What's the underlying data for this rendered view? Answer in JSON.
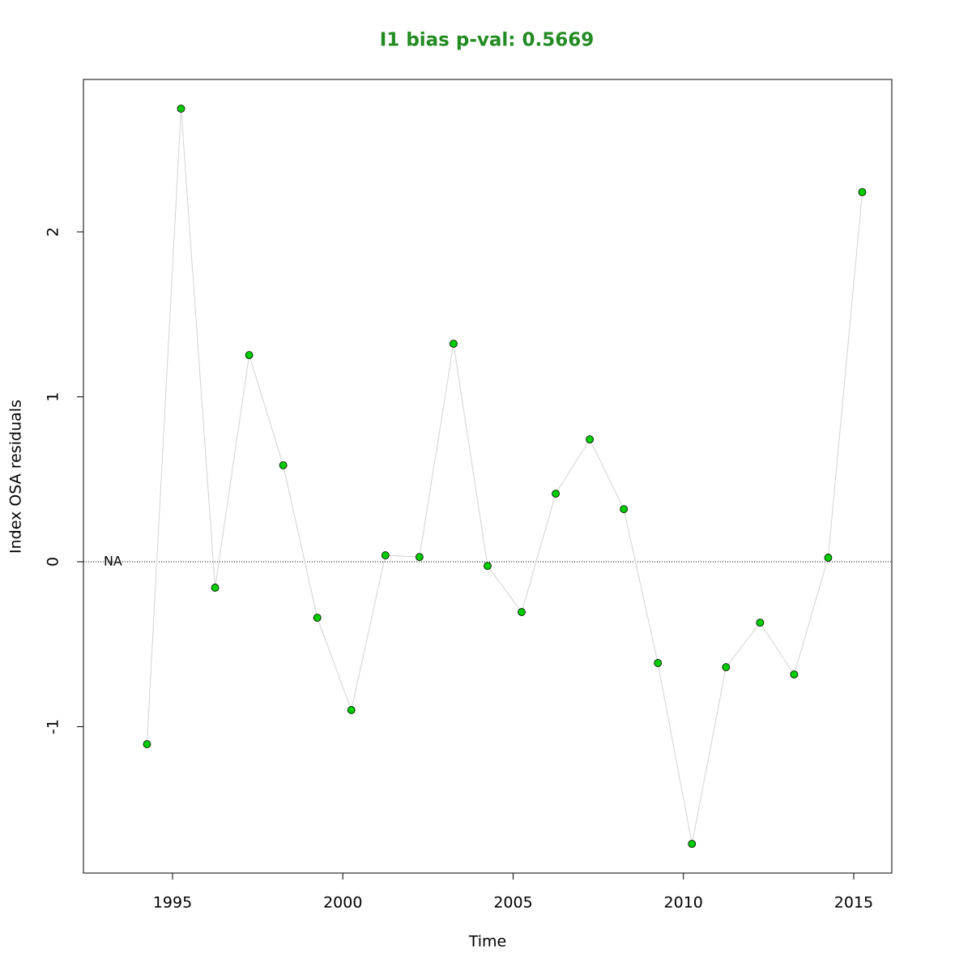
{
  "chart_data": {
    "type": "scatter-line",
    "title": "I1 bias p-val: 0.5669",
    "xlabel": "Time",
    "ylabel": "Index OSA residuals",
    "x": [
      1994.25,
      1995.25,
      1996.25,
      1997.25,
      1998.25,
      1999.25,
      2000.25,
      2001.25,
      2002.25,
      2003.25,
      2004.25,
      2005.25,
      2006.25,
      2007.25,
      2008.25,
      2009.25,
      2010.25,
      2011.25,
      2012.25,
      2013.25,
      2014.25,
      2015.25
    ],
    "series": [
      {
        "name": "I1",
        "color": "#00cc00",
        "line_color": "#d3d3d3",
        "values": [
          -1.106,
          2.747,
          -0.157,
          1.253,
          0.585,
          -0.339,
          -0.899,
          0.039,
          0.029,
          1.322,
          -0.025,
          -0.305,
          0.413,
          0.742,
          0.319,
          -0.614,
          -1.71,
          -0.639,
          -0.369,
          -0.683,
          0.025,
          2.241
        ]
      }
    ],
    "xlim": [
      1992.384,
      2016.118
    ],
    "ylim": [
      -1.887,
      2.924
    ],
    "xticks": [
      1995,
      2000,
      2005,
      2010,
      2015
    ],
    "yticks": [
      -1,
      0,
      1,
      2
    ],
    "hline": 0,
    "annotations": [
      {
        "text": "NA",
        "x": 1993.25,
        "y": 0
      }
    ]
  }
}
